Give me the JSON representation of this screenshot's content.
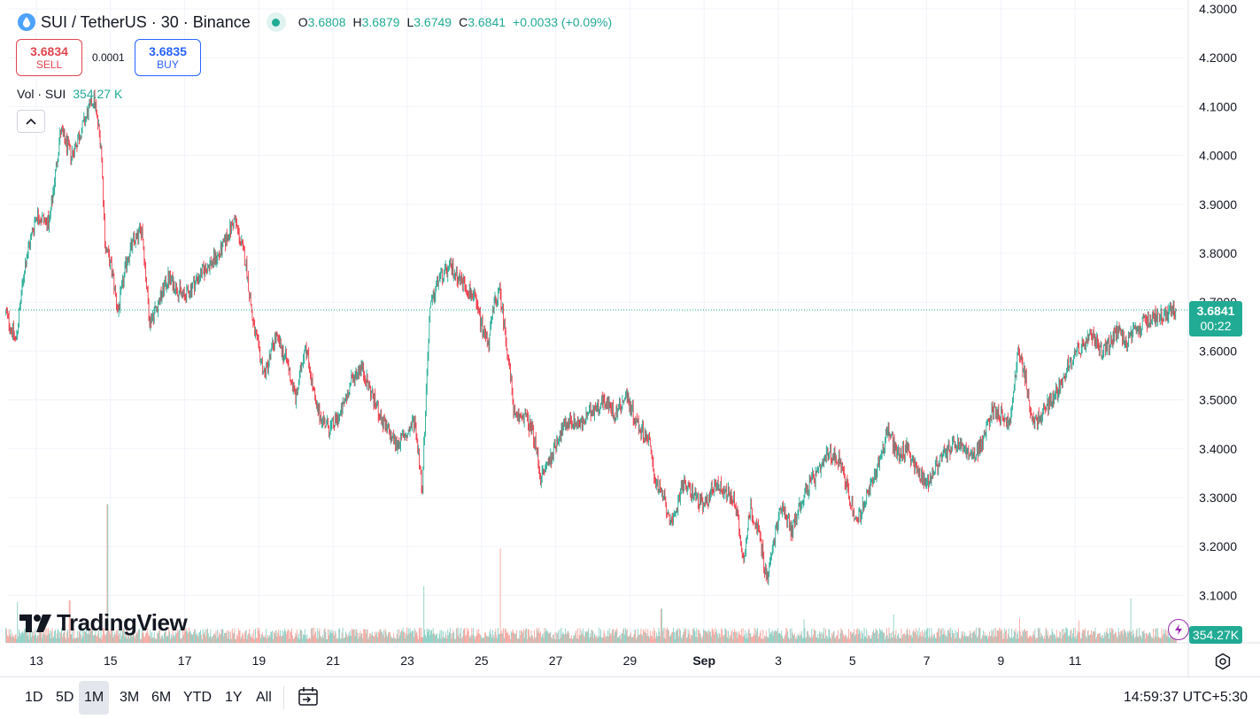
{
  "header": {
    "symbol_title": "SUI / TetherUS · 30 · Binance",
    "ohlc": {
      "o_label": "O",
      "o_value": "3.6808",
      "h_label": "H",
      "h_value": "3.6879",
      "l_label": "L",
      "l_value": "3.6749",
      "c_label": "C",
      "c_value": "3.6841",
      "change": "+0.0033 (+0.09%)"
    }
  },
  "trade": {
    "sell_price": "3.6834",
    "sell_label": "SELL",
    "spread": "0.0001",
    "buy_price": "3.6835",
    "buy_label": "BUY"
  },
  "volume_legend": {
    "label": "Vol · SUI",
    "value": "354.27 K"
  },
  "price_scale": {
    "last_price": "3.6841",
    "countdown": "00:22",
    "volume_tag": "354.27K"
  },
  "branding": {
    "logo_text": "TradingView"
  },
  "bottom_bar": {
    "ranges": [
      "1D",
      "5D",
      "1M",
      "3M",
      "6M",
      "YTD",
      "1Y",
      "All"
    ],
    "active_range": "1M",
    "clock": "14:59:37 UTC+5:30"
  },
  "colors": {
    "up": "#22ab94",
    "down": "#f23645",
    "up_vol": "#8ccfc3",
    "down_vol": "#f5a7a0",
    "grid": "#f0f3fa",
    "text": "#131722"
  },
  "chart_data": {
    "type": "candlestick",
    "title": "SUI / TetherUS · 30 · Binance",
    "ylim": [
      3.05,
      4.3
    ],
    "y_ticks": [
      "4.3000",
      "4.2000",
      "4.1000",
      "4.0000",
      "3.9000",
      "3.8000",
      "3.7000",
      "3.6000",
      "3.5000",
      "3.4000",
      "3.3000",
      "3.2000",
      "3.1000"
    ],
    "x_ticks": [
      {
        "label": "13",
        "day": 0
      },
      {
        "label": "15",
        "day": 2
      },
      {
        "label": "17",
        "day": 4
      },
      {
        "label": "19",
        "day": 6
      },
      {
        "label": "21",
        "day": 8
      },
      {
        "label": "23",
        "day": 10
      },
      {
        "label": "25",
        "day": 12
      },
      {
        "label": "27",
        "day": 14
      },
      {
        "label": "29",
        "day": 16
      },
      {
        "label": "Sep",
        "day": 18,
        "bold": true
      },
      {
        "label": "3",
        "day": 20
      },
      {
        "label": "5",
        "day": 22
      },
      {
        "label": "7",
        "day": 24
      },
      {
        "label": "9",
        "day": 26
      },
      {
        "label": "11",
        "day": 28
      }
    ],
    "x_range_days": [
      -0.83,
      30.74
    ],
    "last_price": 3.6841,
    "volume_max_k": 3000,
    "close_path": [
      {
        "day": -0.83,
        "price": 3.68
      },
      {
        "day": -0.55,
        "price": 3.62
      },
      {
        "day": -0.3,
        "price": 3.78
      },
      {
        "day": 0.0,
        "price": 3.88
      },
      {
        "day": 0.35,
        "price": 3.86
      },
      {
        "day": 0.65,
        "price": 4.05
      },
      {
        "day": 0.95,
        "price": 4.0
      },
      {
        "day": 1.3,
        "price": 4.07
      },
      {
        "day": 1.55,
        "price": 4.12
      },
      {
        "day": 1.75,
        "price": 4.02
      },
      {
        "day": 1.85,
        "price": 3.82
      },
      {
        "day": 2.05,
        "price": 3.76
      },
      {
        "day": 2.2,
        "price": 3.68
      },
      {
        "day": 2.45,
        "price": 3.79
      },
      {
        "day": 2.6,
        "price": 3.82
      },
      {
        "day": 2.85,
        "price": 3.85
      },
      {
        "day": 3.05,
        "price": 3.66
      },
      {
        "day": 3.3,
        "price": 3.7
      },
      {
        "day": 3.55,
        "price": 3.75
      },
      {
        "day": 4.0,
        "price": 3.71
      },
      {
        "day": 4.35,
        "price": 3.75
      },
      {
        "day": 4.7,
        "price": 3.78
      },
      {
        "day": 4.95,
        "price": 3.8
      },
      {
        "day": 5.35,
        "price": 3.87
      },
      {
        "day": 5.65,
        "price": 3.78
      },
      {
        "day": 5.85,
        "price": 3.65
      },
      {
        "day": 6.15,
        "price": 3.55
      },
      {
        "day": 6.45,
        "price": 3.63
      },
      {
        "day": 6.75,
        "price": 3.58
      },
      {
        "day": 7.0,
        "price": 3.5
      },
      {
        "day": 7.25,
        "price": 3.62
      },
      {
        "day": 7.55,
        "price": 3.48
      },
      {
        "day": 7.9,
        "price": 3.44
      },
      {
        "day": 8.2,
        "price": 3.47
      },
      {
        "day": 8.5,
        "price": 3.54
      },
      {
        "day": 8.75,
        "price": 3.57
      },
      {
        "day": 9.05,
        "price": 3.51
      },
      {
        "day": 9.35,
        "price": 3.45
      },
      {
        "day": 9.7,
        "price": 3.41
      },
      {
        "day": 10.0,
        "price": 3.43
      },
      {
        "day": 10.2,
        "price": 3.46
      },
      {
        "day": 10.4,
        "price": 3.32
      },
      {
        "day": 10.6,
        "price": 3.68
      },
      {
        "day": 10.85,
        "price": 3.75
      },
      {
        "day": 11.2,
        "price": 3.77
      },
      {
        "day": 11.5,
        "price": 3.74
      },
      {
        "day": 11.8,
        "price": 3.71
      },
      {
        "day": 12.05,
        "price": 3.64
      },
      {
        "day": 12.2,
        "price": 3.62
      },
      {
        "day": 12.35,
        "price": 3.7
      },
      {
        "day": 12.5,
        "price": 3.72
      },
      {
        "day": 12.7,
        "price": 3.6
      },
      {
        "day": 12.9,
        "price": 3.46
      },
      {
        "day": 13.15,
        "price": 3.47
      },
      {
        "day": 13.4,
        "price": 3.43
      },
      {
        "day": 13.6,
        "price": 3.34
      },
      {
        "day": 13.85,
        "price": 3.38
      },
      {
        "day": 14.1,
        "price": 3.43
      },
      {
        "day": 14.4,
        "price": 3.46
      },
      {
        "day": 14.7,
        "price": 3.45
      },
      {
        "day": 15.0,
        "price": 3.48
      },
      {
        "day": 15.3,
        "price": 3.5
      },
      {
        "day": 15.6,
        "price": 3.47
      },
      {
        "day": 15.9,
        "price": 3.51
      },
      {
        "day": 16.2,
        "price": 3.45
      },
      {
        "day": 16.5,
        "price": 3.42
      },
      {
        "day": 16.7,
        "price": 3.33
      },
      {
        "day": 16.9,
        "price": 3.3
      },
      {
        "day": 17.15,
        "price": 3.24
      },
      {
        "day": 17.4,
        "price": 3.33
      },
      {
        "day": 17.7,
        "price": 3.31
      },
      {
        "day": 18.0,
        "price": 3.28
      },
      {
        "day": 18.3,
        "price": 3.33
      },
      {
        "day": 18.6,
        "price": 3.31
      },
      {
        "day": 18.85,
        "price": 3.29
      },
      {
        "day": 19.05,
        "price": 3.17
      },
      {
        "day": 19.25,
        "price": 3.28
      },
      {
        "day": 19.5,
        "price": 3.22
      },
      {
        "day": 19.7,
        "price": 3.13
      },
      {
        "day": 19.9,
        "price": 3.22
      },
      {
        "day": 20.1,
        "price": 3.29
      },
      {
        "day": 20.35,
        "price": 3.23
      },
      {
        "day": 20.6,
        "price": 3.29
      },
      {
        "day": 20.85,
        "price": 3.33
      },
      {
        "day": 21.1,
        "price": 3.35
      },
      {
        "day": 21.35,
        "price": 3.39
      },
      {
        "day": 21.65,
        "price": 3.38
      },
      {
        "day": 21.85,
        "price": 3.32
      },
      {
        "day": 22.1,
        "price": 3.25
      },
      {
        "day": 22.4,
        "price": 3.3
      },
      {
        "day": 22.7,
        "price": 3.37
      },
      {
        "day": 22.95,
        "price": 3.44
      },
      {
        "day": 23.2,
        "price": 3.39
      },
      {
        "day": 23.5,
        "price": 3.4
      },
      {
        "day": 23.75,
        "price": 3.35
      },
      {
        "day": 24.0,
        "price": 3.33
      },
      {
        "day": 24.3,
        "price": 3.37
      },
      {
        "day": 24.6,
        "price": 3.4
      },
      {
        "day": 24.9,
        "price": 3.41
      },
      {
        "day": 25.2,
        "price": 3.38
      },
      {
        "day": 25.5,
        "price": 3.41
      },
      {
        "day": 25.75,
        "price": 3.48
      },
      {
        "day": 26.0,
        "price": 3.47
      },
      {
        "day": 26.25,
        "price": 3.45
      },
      {
        "day": 26.45,
        "price": 3.6
      },
      {
        "day": 26.65,
        "price": 3.55
      },
      {
        "day": 26.85,
        "price": 3.45
      },
      {
        "day": 27.1,
        "price": 3.47
      },
      {
        "day": 27.35,
        "price": 3.5
      },
      {
        "day": 27.6,
        "price": 3.53
      },
      {
        "day": 27.85,
        "price": 3.58
      },
      {
        "day": 28.05,
        "price": 3.6
      },
      {
        "day": 28.3,
        "price": 3.62
      },
      {
        "day": 28.5,
        "price": 3.63
      },
      {
        "day": 28.7,
        "price": 3.6
      },
      {
        "day": 28.9,
        "price": 3.61
      },
      {
        "day": 29.15,
        "price": 3.64
      },
      {
        "day": 29.4,
        "price": 3.62
      },
      {
        "day": 29.65,
        "price": 3.64
      },
      {
        "day": 29.9,
        "price": 3.66
      },
      {
        "day": 30.1,
        "price": 3.67
      },
      {
        "day": 30.35,
        "price": 3.675
      },
      {
        "day": 30.55,
        "price": 3.68
      },
      {
        "day": 30.74,
        "price": 3.6841
      }
    ],
    "volume_spikes_k": [
      {
        "day": 1.92,
        "volume": 2350
      },
      {
        "day": 10.45,
        "volume": 960
      },
      {
        "day": 12.5,
        "volume": 1600
      },
      {
        "day": 29.5,
        "volume": 750
      },
      {
        "day": -0.5,
        "volume": 690
      },
      {
        "day": 0.9,
        "volume": 720
      },
      {
        "day": 16.85,
        "volume": 580
      },
      {
        "day": 20.7,
        "volume": 400
      },
      {
        "day": 23.1,
        "volume": 480
      },
      {
        "day": 26.5,
        "volume": 420
      },
      {
        "day": 28.1,
        "volume": 380
      }
    ]
  }
}
